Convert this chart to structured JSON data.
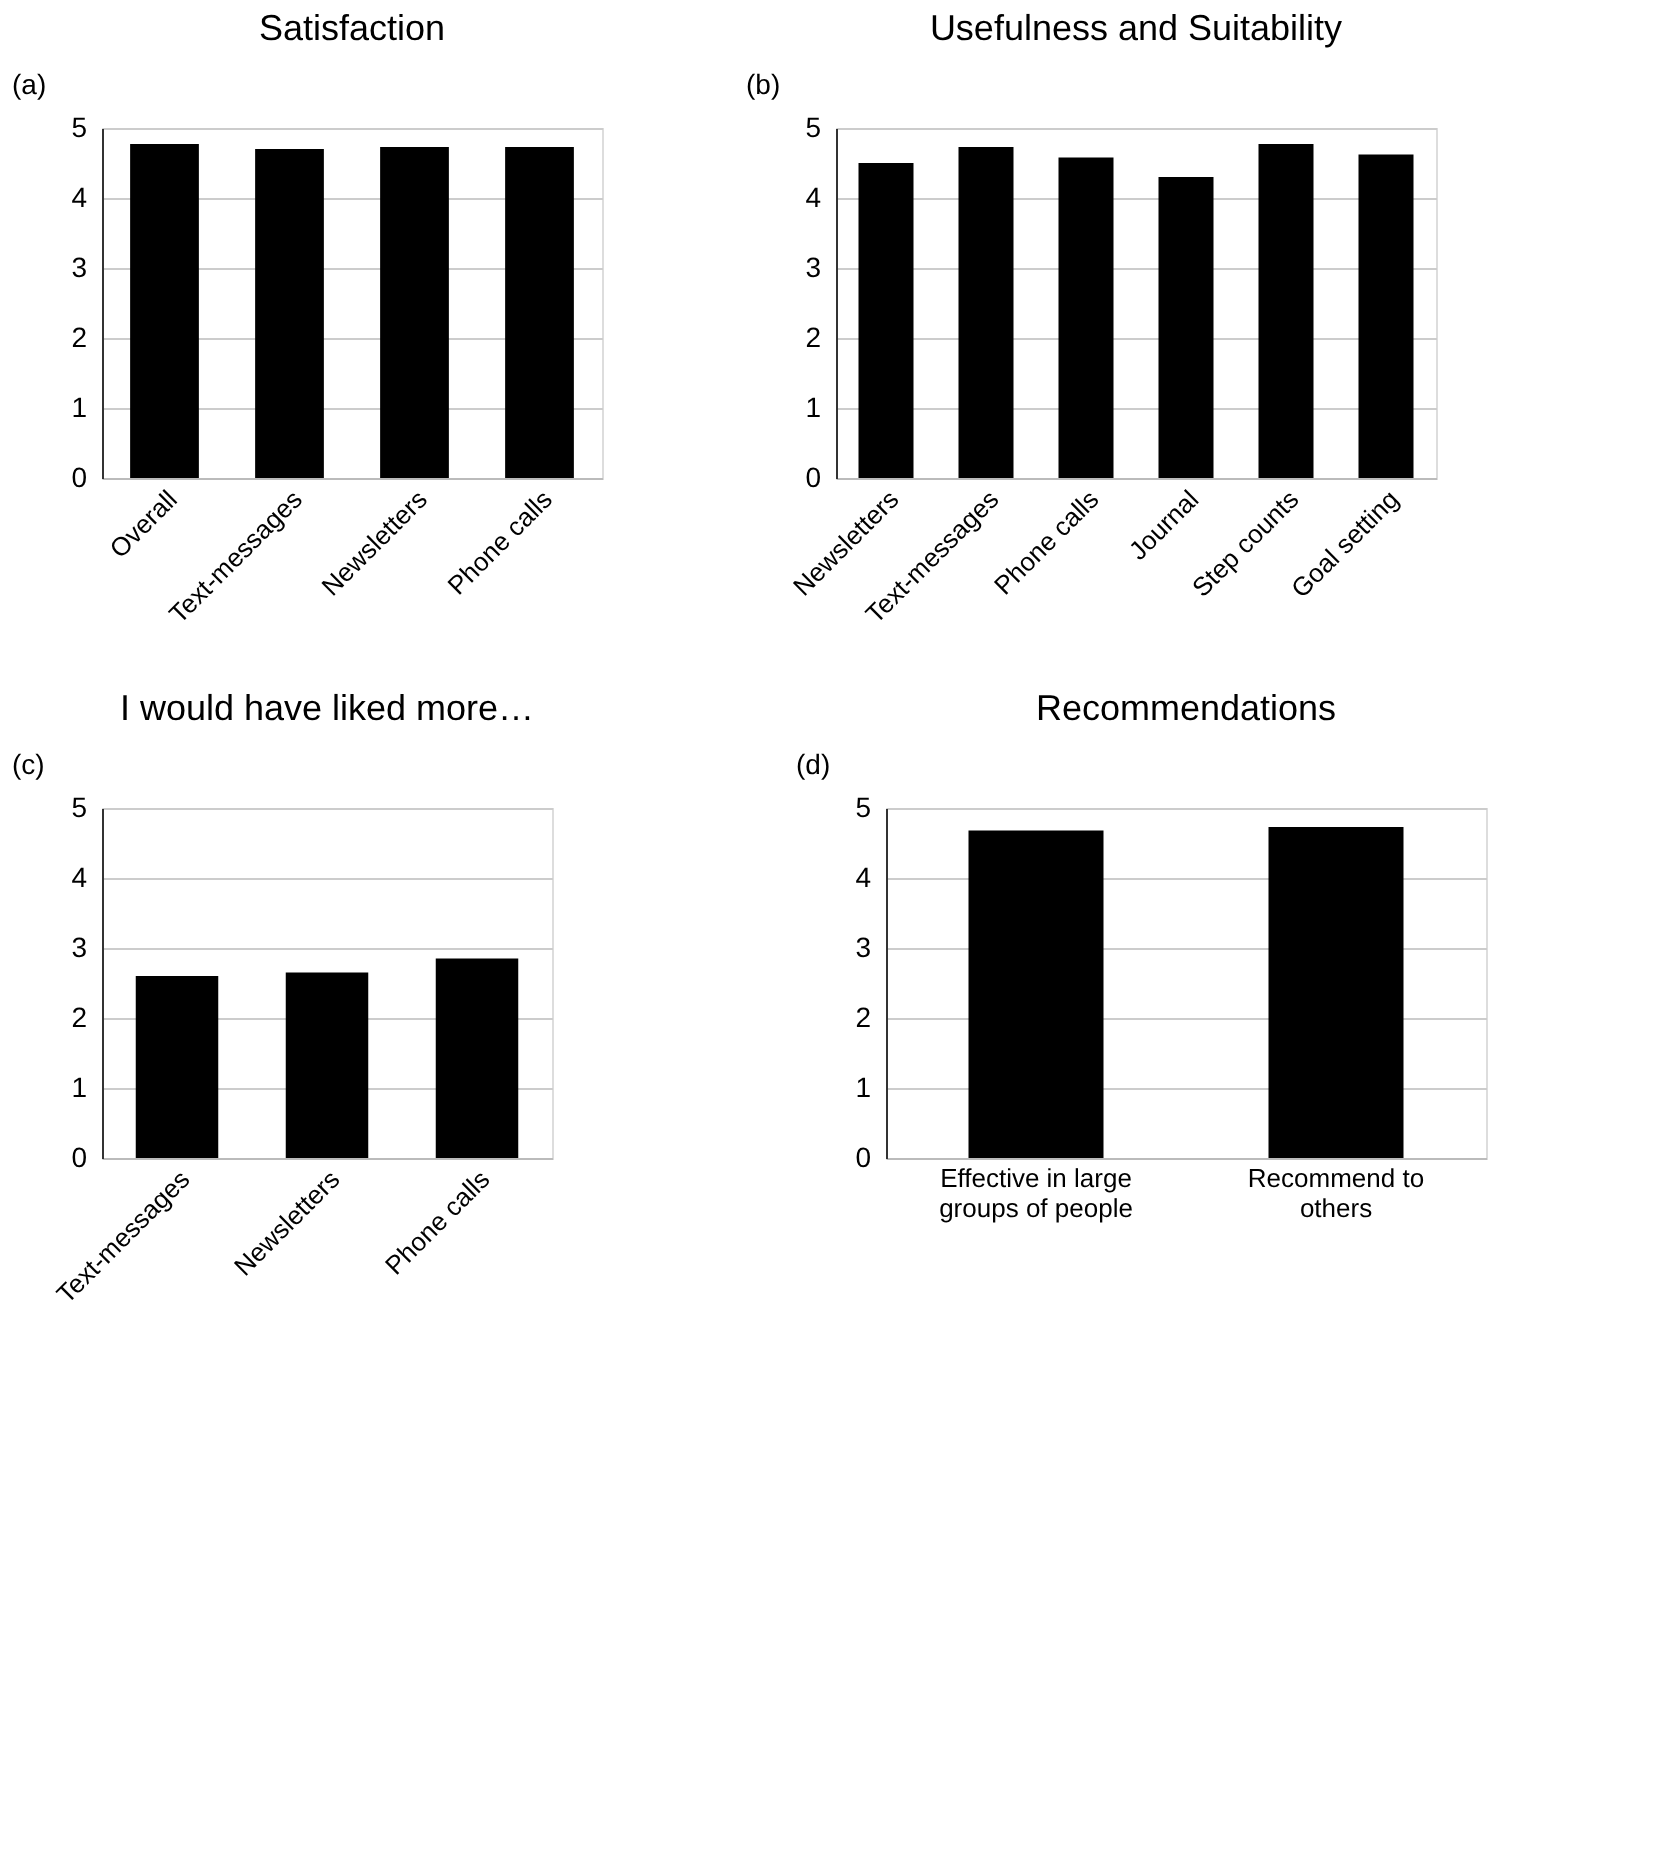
{
  "chart_data": [
    {
      "type": "bar",
      "title": "Satisfaction",
      "annotations": [
        "(a)"
      ],
      "categories": [
        "Overall",
        "Text-messages",
        "Newsletters",
        "Phone calls"
      ],
      "values": [
        4.77,
        4.7,
        4.73,
        4.73
      ],
      "color": "#000000",
      "ylim": [
        0,
        5
      ],
      "yticks": [
        0,
        1,
        2,
        3,
        4,
        5
      ],
      "grid": "y"
    },
    {
      "type": "bar",
      "title": "Usefulness and Suitability",
      "annotations": [
        "(b)"
      ],
      "categories": [
        "Newsletters",
        "Text-messages",
        "Phone calls",
        "Journal",
        "Step counts",
        "Goal setting"
      ],
      "values": [
        4.5,
        4.73,
        4.58,
        4.3,
        4.77,
        4.62
      ],
      "color": "#000000",
      "ylim": [
        0,
        5
      ],
      "yticks": [
        0,
        1,
        2,
        3,
        4,
        5
      ],
      "grid": "y"
    },
    {
      "type": "bar",
      "title": "I would have liked more…",
      "annotations": [
        "(c)"
      ],
      "categories": [
        "Text-messages",
        "Newsletters",
        "Phone calls"
      ],
      "values": [
        2.6,
        2.65,
        2.85
      ],
      "color": "#000000",
      "ylim": [
        0,
        5
      ],
      "yticks": [
        0,
        1,
        2,
        3,
        4,
        5
      ],
      "grid": "y"
    },
    {
      "type": "bar",
      "title": "Recommendations",
      "annotations": [
        "(d)"
      ],
      "categories": [
        "Effective in large\ngroups of people",
        "Recommend to\nothers"
      ],
      "values": [
        4.68,
        4.73
      ],
      "color": "#000000",
      "ylim": [
        0,
        5
      ],
      "yticks": [
        0,
        1,
        2,
        3,
        4,
        5
      ],
      "grid": "y"
    }
  ]
}
